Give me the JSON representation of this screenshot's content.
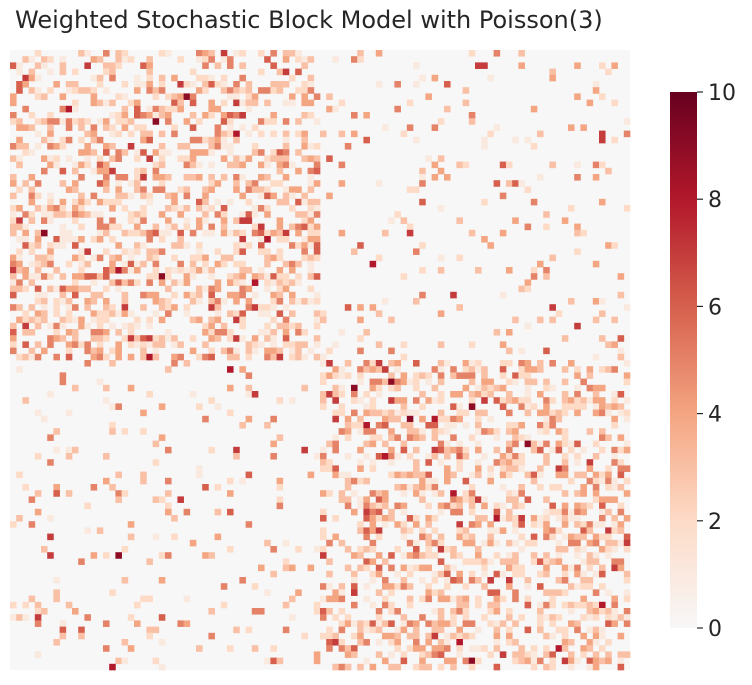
{
  "chart_data": {
    "type": "heatmap",
    "title": "Weighted Stochastic Block Model with Poisson(3)",
    "xlabel": "",
    "ylabel": "",
    "n_nodes": 100,
    "blocks": [
      {
        "name": "",
        "start_index": 0,
        "end_index": 49
      },
      {
        "name": "",
        "start_index": 50,
        "end_index": 99
      }
    ],
    "within_block_edge_probability": 0.5,
    "between_block_edge_probability": 0.1,
    "weight_distribution": "Poisson(3)",
    "colorbar": {
      "min": 0,
      "max": 10,
      "ticks": [
        0,
        2,
        4,
        6,
        8,
        10
      ],
      "colormap": "RdBu_r-positive",
      "colors": [
        "#f7f7f7",
        "#fddbc7",
        "#f4a582",
        "#d6604d",
        "#b2182b",
        "#67001f"
      ]
    },
    "axis_ticks_visible": false,
    "grid": false
  }
}
